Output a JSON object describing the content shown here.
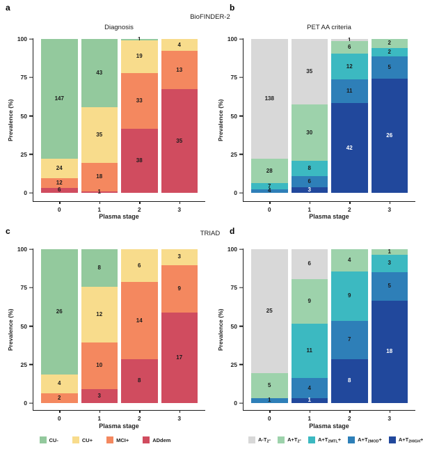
{
  "figure": {
    "header_top": "BioFINDER-2",
    "header_bottom": "TRIAD"
  },
  "legends": {
    "diagnosis": {
      "items": [
        {
          "label": "CU-",
          "color": "#93c99d"
        },
        {
          "label": "CU+",
          "color": "#f8dc8c"
        },
        {
          "label": "MCI+",
          "color": "#f4885f"
        },
        {
          "label": "ADdem",
          "color": "#d04c5f"
        }
      ]
    },
    "pet": {
      "items": [
        {
          "label": "A-T2-",
          "color": "#d8d8d8",
          "parts": [
            {
              "t": "A-T"
            },
            {
              "t": "2",
              "sub": true
            },
            {
              "t": "-"
            }
          ]
        },
        {
          "label": "A+T2-",
          "color": "#9dd2ab",
          "parts": [
            {
              "t": "A+T"
            },
            {
              "t": "2",
              "sub": true
            },
            {
              "t": "-"
            }
          ]
        },
        {
          "label": "A+T2MTL+",
          "color": "#3cb9c1",
          "parts": [
            {
              "t": "A+T"
            },
            {
              "t": "2MTL",
              "sub": true
            },
            {
              "t": "+"
            }
          ]
        },
        {
          "label": "A+T2MOD+",
          "color": "#2e7fb8",
          "parts": [
            {
              "t": "A+T"
            },
            {
              "t": "2MOD",
              "sub": true
            },
            {
              "t": "+"
            }
          ]
        },
        {
          "label": "A+T2HIGH+",
          "color": "#21489c",
          "parts": [
            {
              "t": "A+T"
            },
            {
              "t": "2HIGH",
              "sub": true
            },
            {
              "t": "+"
            }
          ]
        }
      ]
    }
  },
  "chart_data": [
    {
      "id": "a",
      "panel_label": "a",
      "type": "bar",
      "stacked": true,
      "normalized": "percent",
      "bar_labels": "counts",
      "title": "Diagnosis",
      "xlabel": "Plasma stage",
      "ylabel": "Prevalence (%)",
      "categories": [
        "0",
        "1",
        "2",
        "3"
      ],
      "yticks": [
        0,
        25,
        50,
        75,
        100
      ],
      "ylim": [
        0,
        100
      ],
      "series": [
        {
          "name": "CU-",
          "color": "#93c99d",
          "values": [
            147,
            43,
            1,
            0
          ]
        },
        {
          "name": "CU+",
          "color": "#f8dc8c",
          "values": [
            24,
            35,
            19,
            4
          ]
        },
        {
          "name": "MCI+",
          "color": "#f4885f",
          "values": [
            12,
            18,
            33,
            13
          ]
        },
        {
          "name": "ADdem",
          "color": "#d04c5f",
          "values": [
            6,
            1,
            38,
            35
          ]
        }
      ]
    },
    {
      "id": "b",
      "panel_label": "b",
      "type": "bar",
      "stacked": true,
      "normalized": "percent",
      "bar_labels": "counts",
      "title": "PET AA criteria",
      "xlabel": "Plasma stage",
      "ylabel": "Prevalence (%)",
      "categories": [
        "0",
        "1",
        "2",
        "3"
      ],
      "yticks": [
        0,
        25,
        50,
        75,
        100
      ],
      "ylim": [
        0,
        100
      ],
      "series": [
        {
          "name": "A-T2-",
          "color": "#d8d8d8",
          "values": [
            138,
            35,
            1,
            0
          ]
        },
        {
          "name": "A+T2-",
          "color": "#9dd2ab",
          "values": [
            28,
            30,
            6,
            2
          ]
        },
        {
          "name": "A+T2MTL+",
          "color": "#3cb9c1",
          "values": [
            7,
            8,
            12,
            2
          ]
        },
        {
          "name": "A+T2MOD+",
          "color": "#2e7fb8",
          "values": [
            4,
            6,
            11,
            5
          ]
        },
        {
          "name": "A+T2HIGH+",
          "color": "#21489c",
          "label_color": "#ffffff",
          "values": [
            0,
            3,
            42,
            26
          ]
        }
      ]
    },
    {
      "id": "c",
      "panel_label": "c",
      "type": "bar",
      "stacked": true,
      "normalized": "percent",
      "bar_labels": "counts",
      "title": "",
      "xlabel": "Plasma stage",
      "ylabel": "Prevalence (%)",
      "categories": [
        "0",
        "1",
        "2",
        "3"
      ],
      "yticks": [
        0,
        25,
        50,
        75,
        100
      ],
      "ylim": [
        0,
        100
      ],
      "series": [
        {
          "name": "CU-",
          "color": "#93c99d",
          "values": [
            26,
            8,
            0,
            0
          ]
        },
        {
          "name": "CU+",
          "color": "#f8dc8c",
          "values": [
            4,
            12,
            6,
            3
          ]
        },
        {
          "name": "MCI+",
          "color": "#f4885f",
          "values": [
            2,
            10,
            14,
            9
          ]
        },
        {
          "name": "ADdem",
          "color": "#d04c5f",
          "values": [
            0,
            3,
            8,
            17
          ]
        }
      ]
    },
    {
      "id": "d",
      "panel_label": "d",
      "type": "bar",
      "stacked": true,
      "normalized": "percent",
      "bar_labels": "counts",
      "title": "",
      "xlabel": "Plasma stage",
      "ylabel": "Prevalence (%)",
      "categories": [
        "0",
        "1",
        "2",
        "3"
      ],
      "yticks": [
        0,
        25,
        50,
        75,
        100
      ],
      "ylim": [
        0,
        100
      ],
      "series": [
        {
          "name": "A-T2-",
          "color": "#d8d8d8",
          "values": [
            25,
            6,
            0,
            0
          ]
        },
        {
          "name": "A+T2-",
          "color": "#9dd2ab",
          "values": [
            5,
            9,
            4,
            1
          ]
        },
        {
          "name": "A+T2MTL+",
          "color": "#3cb9c1",
          "values": [
            0,
            11,
            9,
            3
          ]
        },
        {
          "name": "A+T2MOD+",
          "color": "#2e7fb8",
          "values": [
            1,
            4,
            7,
            5
          ]
        },
        {
          "name": "A+T2HIGH+",
          "color": "#21489c",
          "label_color": "#ffffff",
          "values": [
            0,
            1,
            8,
            18
          ]
        }
      ]
    }
  ]
}
